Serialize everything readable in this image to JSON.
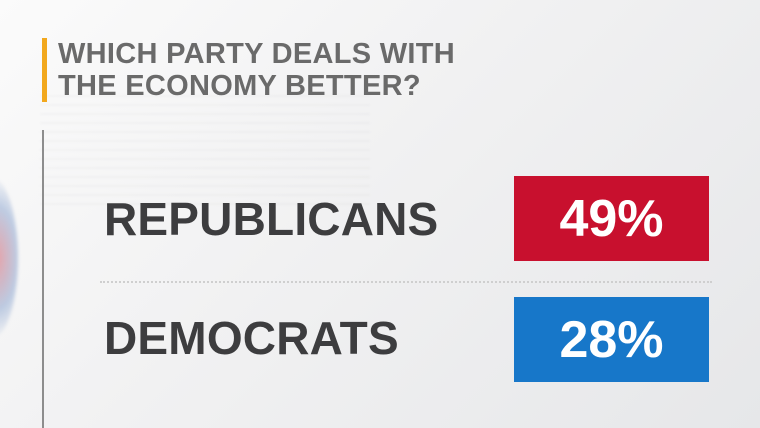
{
  "title": {
    "line1": "WHICH PARTY DEALS WITH",
    "line2": "THE ECONOMY BETTER?"
  },
  "colors": {
    "accent": "#f2a81d",
    "republican": "#c8102e",
    "democrat": "#1777c9"
  },
  "chart_data": {
    "type": "table",
    "title": "WHICH PARTY DEALS WITH THE ECONOMY BETTER?",
    "categories": [
      "REPUBLICANS",
      "DEMOCRATS"
    ],
    "values": [
      49,
      28
    ],
    "unit": "%",
    "display_values": [
      "49%",
      "28%"
    ],
    "colors": [
      "#c8102e",
      "#1777c9"
    ]
  }
}
